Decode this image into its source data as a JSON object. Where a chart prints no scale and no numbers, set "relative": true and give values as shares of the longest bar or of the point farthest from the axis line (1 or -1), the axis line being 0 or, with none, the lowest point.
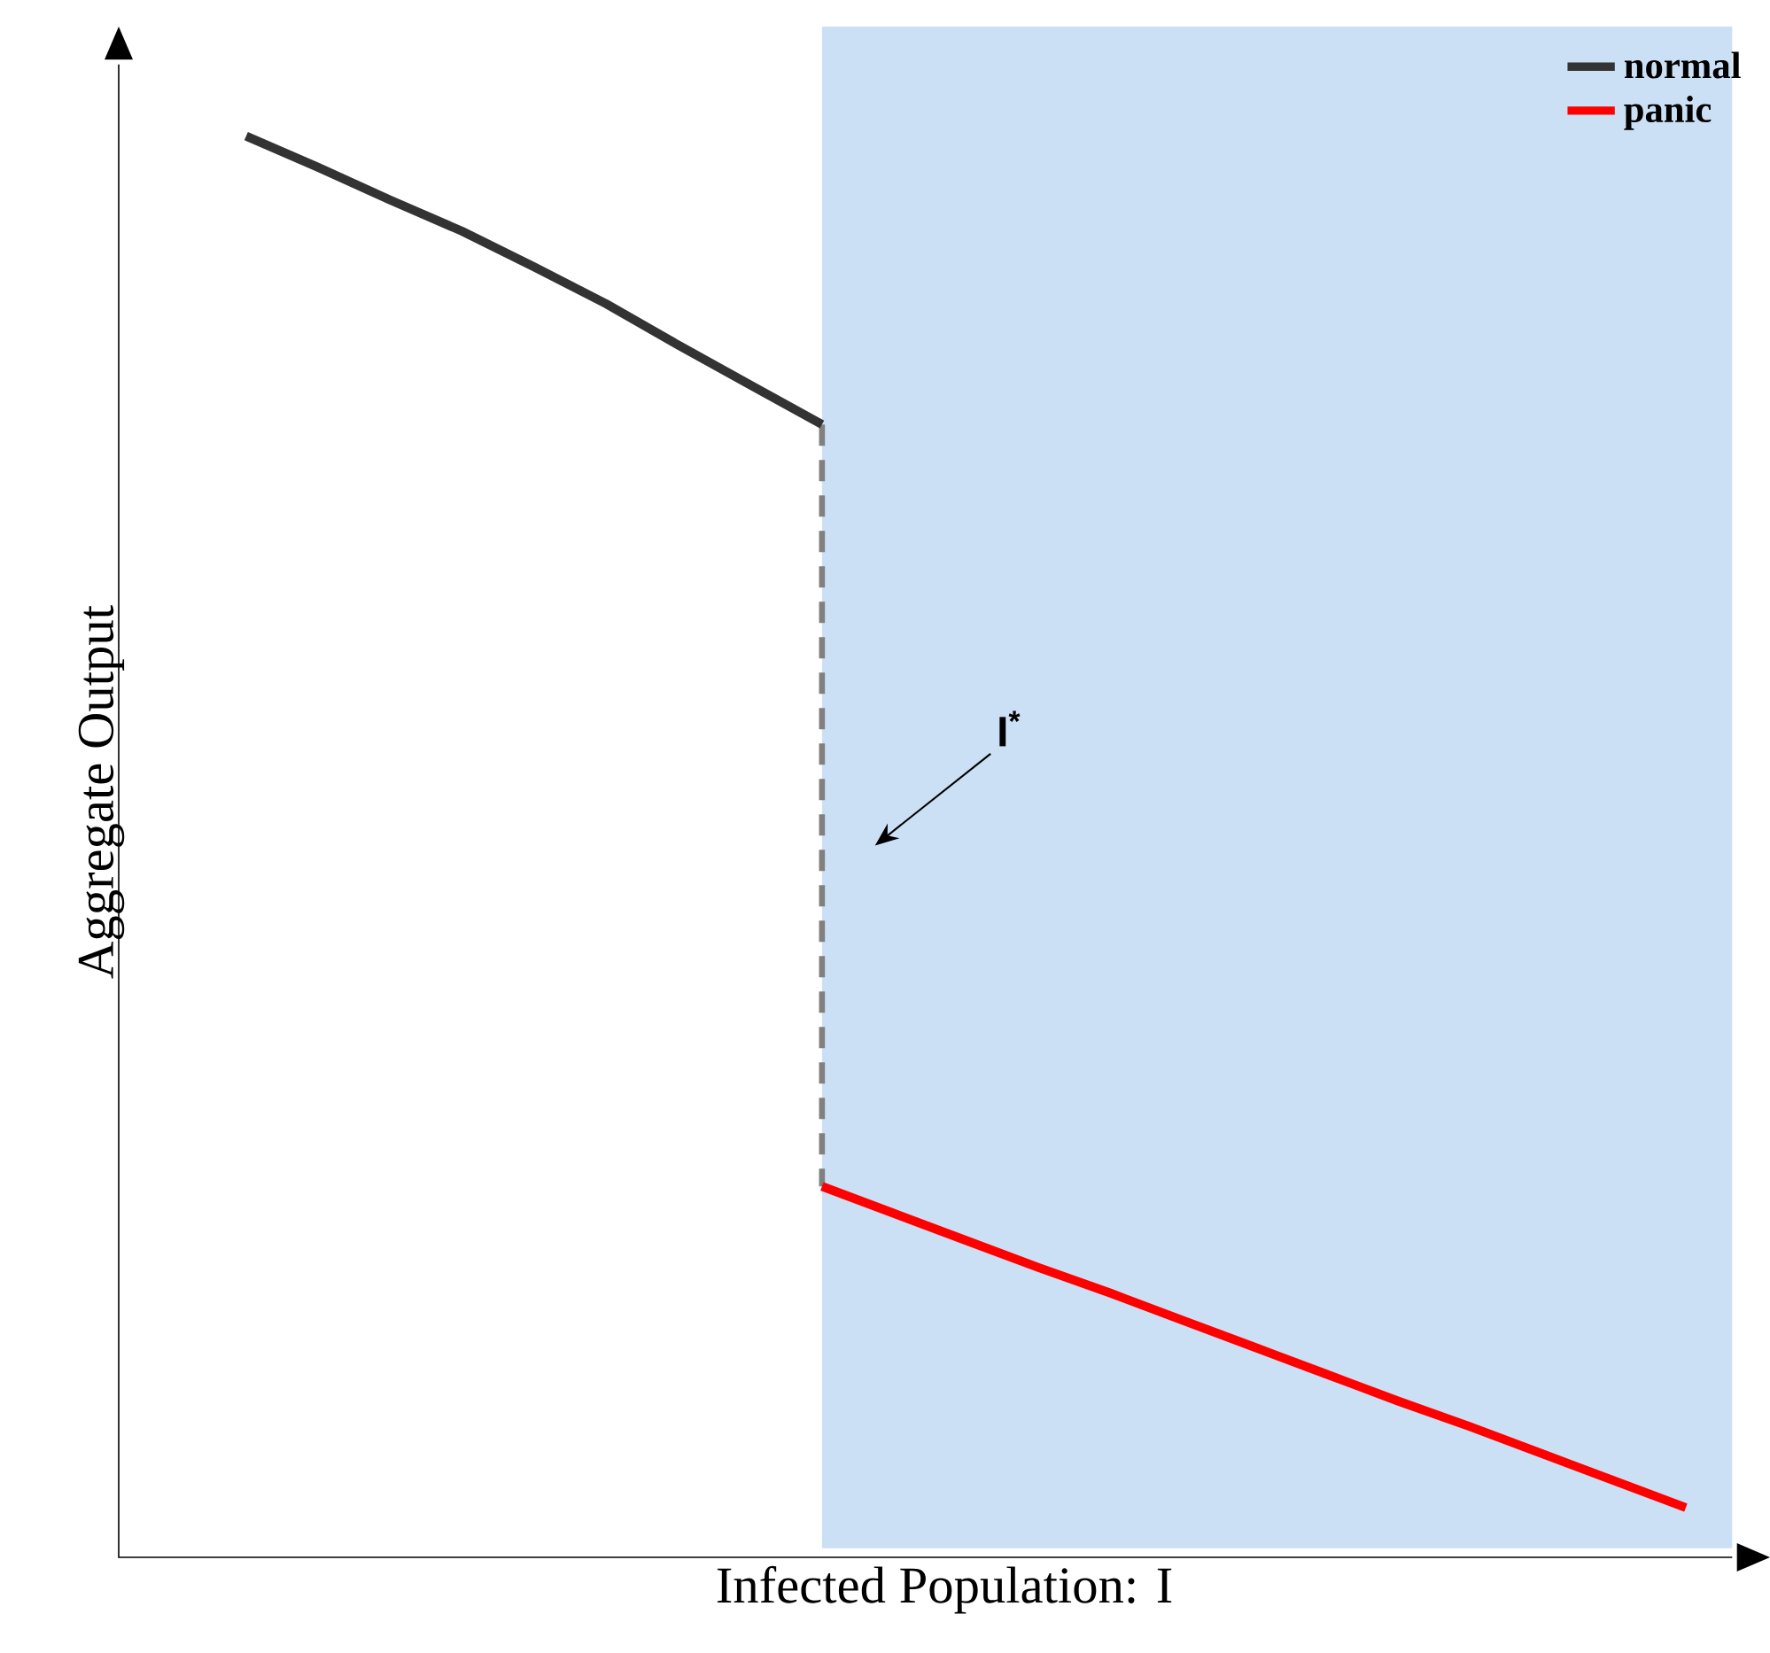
{
  "chart_data": {
    "type": "line",
    "relative": true,
    "xlabel": "Infected Population: I",
    "ylabel": "Aggregate Output",
    "legend": "top right",
    "categories": [
      null,
      null,
      null,
      null,
      null,
      null,
      null,
      null,
      null,
      null,
      null,
      null,
      null,
      null,
      null,
      null,
      null,
      null,
      null,
      null,
      null
    ],
    "series": [
      {
        "name": "normal",
        "color": "#333333",
        "values": [
          1.0,
          0.978,
          0.955,
          0.933,
          0.908,
          0.882,
          0.853,
          0.825,
          0.797,
          null,
          null,
          null,
          null,
          null,
          null,
          null,
          null,
          null,
          null,
          null,
          null
        ]
      },
      {
        "name": "panic",
        "color": "#ff0000",
        "values": [
          null,
          null,
          null,
          null,
          null,
          null,
          null,
          null,
          0.261,
          0.242,
          0.223,
          0.204,
          0.186,
          0.167,
          0.148,
          0.129,
          0.11,
          0.092,
          0.073,
          0.054,
          0.035
        ]
      }
    ],
    "annotations": [
      "I$^{*}$"
    ]
  }
}
